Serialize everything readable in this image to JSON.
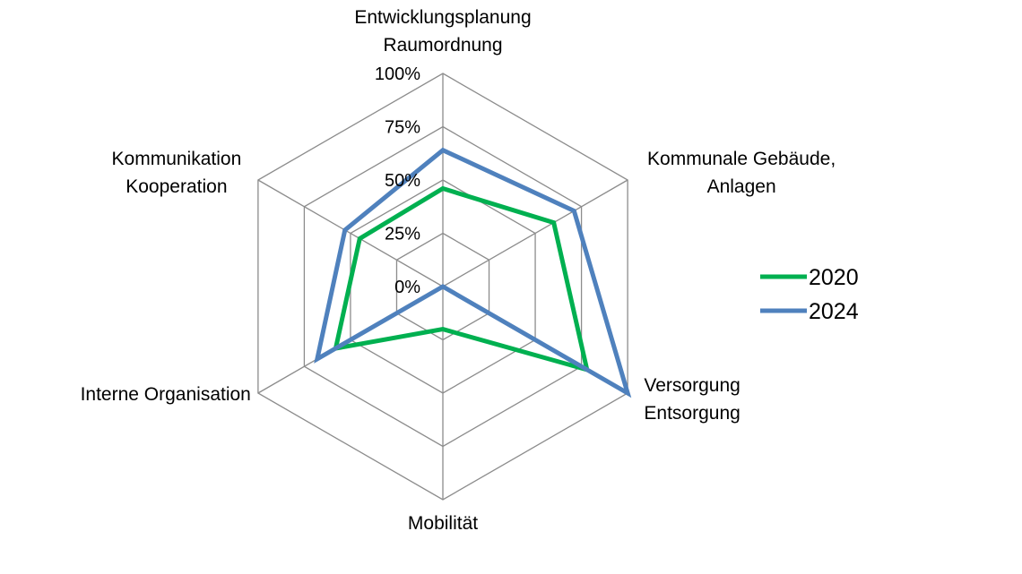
{
  "chart_data": {
    "type": "radar",
    "title": "",
    "categories": [
      [
        "Entwicklungsplanung",
        "Raumordnung"
      ],
      [
        "Kommunale Gebäude,",
        "Anlagen"
      ],
      [
        "Versorgung",
        "Entsorgung"
      ],
      [
        "Mobilität"
      ],
      [
        "Interne Organisation"
      ],
      [
        "Kommunikation",
        "Kooperation"
      ]
    ],
    "axis": {
      "min": 0,
      "max": 100,
      "ticks": [
        "0%",
        "25%",
        "50%",
        "75%",
        "100%"
      ],
      "tick_values": [
        0,
        25,
        50,
        75,
        100
      ]
    },
    "grid": true,
    "legend_position": "right",
    "series": [
      {
        "name": "2020",
        "color": "#00b050",
        "values": [
          46,
          60,
          78,
          20,
          58,
          45
        ]
      },
      {
        "name": "2024",
        "color": "#4f81bd",
        "values": [
          64,
          71,
          100,
          0,
          68,
          53
        ]
      }
    ]
  }
}
